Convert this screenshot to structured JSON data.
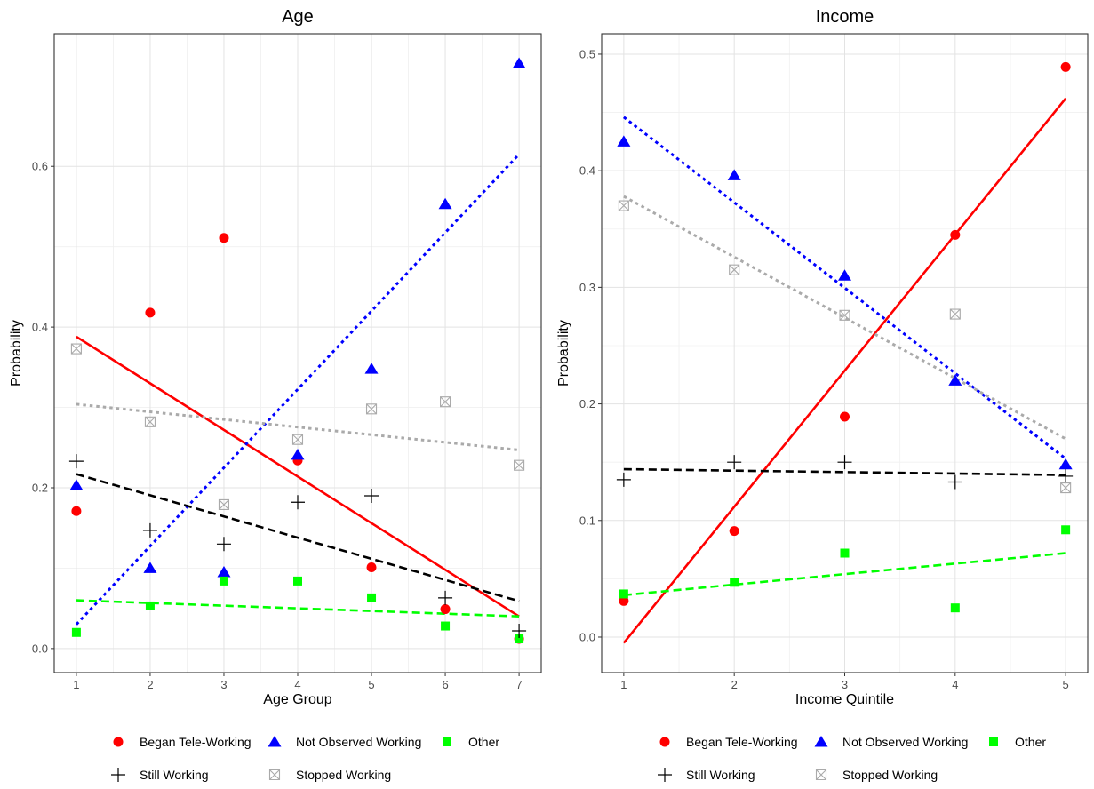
{
  "chart_data": [
    {
      "type": "scatter",
      "title": "Age",
      "xlabel": "Age Group",
      "ylabel": "Probability",
      "xlim": [
        0.7,
        7.3
      ],
      "ylim": [
        -0.03,
        0.765
      ],
      "x_ticks": [
        1,
        2,
        3,
        4,
        5,
        6,
        7
      ],
      "y_ticks": [
        0.0,
        0.2,
        0.4,
        0.6
      ],
      "y_tick_labels": [
        "0.0",
        "0.2",
        "0.4",
        "0.6"
      ],
      "grid": true,
      "legend_position": "bottom",
      "series": [
        {
          "name": "Began Tele-Working",
          "color": "#ff0000",
          "marker": "circle",
          "x": [
            1,
            2,
            3,
            4,
            5,
            6,
            7
          ],
          "y": [
            0.171,
            0.418,
            0.511,
            0.234,
            0.101,
            0.049,
            0.012
          ],
          "trend": [
            0.388,
            0.04
          ],
          "line_style": "solid"
        },
        {
          "name": "Not Observed Working",
          "color": "#0000ff",
          "marker": "triangle",
          "x": [
            1,
            2,
            3,
            4,
            5,
            6,
            7
          ],
          "y": [
            0.203,
            0.1,
            0.095,
            0.241,
            0.348,
            0.553,
            0.728
          ],
          "trend": [
            0.03,
            0.615
          ],
          "line_style": "dotted"
        },
        {
          "name": "Other",
          "color": "#00ff00",
          "marker": "square",
          "x": [
            1,
            2,
            3,
            4,
            5,
            6,
            7
          ],
          "y": [
            0.02,
            0.053,
            0.084,
            0.084,
            0.063,
            0.028,
            0.012
          ],
          "trend": [
            0.06,
            0.04
          ],
          "line_style": "dashed"
        },
        {
          "name": "Still Working",
          "color": "#000000",
          "marker": "plus",
          "x": [
            1,
            2,
            3,
            4,
            5,
            6,
            7
          ],
          "y": [
            0.233,
            0.147,
            0.13,
            0.182,
            0.19,
            0.063,
            0.022
          ],
          "trend": [
            0.217,
            0.059
          ],
          "line_style": "dashed"
        },
        {
          "name": "Stopped Working",
          "color": "#aaaaaa",
          "marker": "boxx",
          "x": [
            1,
            2,
            3,
            4,
            5,
            6,
            7
          ],
          "y": [
            0.373,
            0.282,
            0.179,
            0.26,
            0.298,
            0.307,
            0.228
          ],
          "trend": [
            0.304,
            0.247
          ],
          "line_style": "dotted"
        }
      ]
    },
    {
      "type": "scatter",
      "title": "Income",
      "xlabel": "Income Quintile",
      "ylabel": "Probability",
      "xlim": [
        0.8,
        5.2
      ],
      "ylim": [
        -0.0305,
        0.5175
      ],
      "x_ticks": [
        1,
        2,
        3,
        4,
        5
      ],
      "y_ticks": [
        0.0,
        0.1,
        0.2,
        0.3,
        0.4,
        0.5
      ],
      "y_tick_labels": [
        "0.0",
        "0.1",
        "0.2",
        "0.3",
        "0.4",
        "0.5"
      ],
      "grid": true,
      "legend_position": "bottom",
      "series": [
        {
          "name": "Began Tele-Working",
          "color": "#ff0000",
          "marker": "circle",
          "x": [
            1,
            2,
            3,
            4,
            5
          ],
          "y": [
            0.031,
            0.091,
            0.189,
            0.345,
            0.489
          ],
          "trend": [
            -0.005,
            0.462
          ],
          "line_style": "solid"
        },
        {
          "name": "Not Observed Working",
          "color": "#0000ff",
          "marker": "triangle",
          "x": [
            1,
            2,
            3,
            4,
            5
          ],
          "y": [
            0.425,
            0.396,
            0.31,
            0.22,
            0.148
          ],
          "trend": [
            0.446,
            0.153
          ],
          "line_style": "dotted"
        },
        {
          "name": "Other",
          "color": "#00ff00",
          "marker": "square",
          "x": [
            1,
            2,
            3,
            4,
            5
          ],
          "y": [
            0.037,
            0.047,
            0.072,
            0.025,
            0.092
          ],
          "trend": [
            0.036,
            0.072
          ],
          "line_style": "dashed"
        },
        {
          "name": "Still Working",
          "color": "#000000",
          "marker": "plus",
          "x": [
            1,
            2,
            3,
            4,
            5
          ],
          "y": [
            0.135,
            0.15,
            0.15,
            0.133,
            0.138
          ],
          "trend": [
            0.144,
            0.139
          ],
          "line_style": "dashed"
        },
        {
          "name": "Stopped Working",
          "color": "#aaaaaa",
          "marker": "boxx",
          "x": [
            1,
            2,
            3,
            4,
            5
          ],
          "y": [
            0.37,
            0.315,
            0.276,
            0.277,
            0.128
          ],
          "trend": [
            0.378,
            0.17
          ],
          "line_style": "dotted"
        }
      ]
    }
  ]
}
